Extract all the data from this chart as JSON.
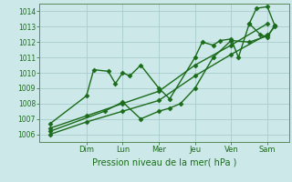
{
  "title": "",
  "xlabel": "Pression niveau de la mer( hPa )",
  "ylabel": "",
  "bg_color": "#cce8e8",
  "grid_color": "#aacccc",
  "line_color": "#1a6b1a",
  "ylim": [
    1005.5,
    1014.5
  ],
  "yticks": [
    1006,
    1007,
    1008,
    1009,
    1010,
    1011,
    1012,
    1013,
    1014
  ],
  "day_labels": [
    "Dim",
    "Lun",
    "Mer",
    "Jeu",
    "Ven",
    "Sam"
  ],
  "day_positions": [
    1,
    2,
    3,
    4,
    5,
    6
  ],
  "series": [
    {
      "x": [
        0,
        1.0,
        1.2,
        1.6,
        1.8,
        2.0,
        2.2,
        2.5,
        3.0,
        3.3,
        4.0,
        4.2,
        4.5,
        4.7,
        5.0,
        5.2,
        5.5,
        5.8,
        6.0,
        6.2
      ],
      "y": [
        1006.7,
        1008.5,
        1010.2,
        1010.1,
        1009.3,
        1010.0,
        1009.8,
        1010.5,
        1009.0,
        1008.3,
        1011.0,
        1012.0,
        1011.8,
        1012.1,
        1012.2,
        1011.0,
        1013.2,
        1012.5,
        1012.3,
        1013.1
      ]
    },
    {
      "x": [
        0,
        1.5,
        2.0,
        2.5,
        3.0,
        3.3,
        3.6,
        4.0,
        4.5,
        5.0,
        5.5,
        6.0,
        6.2
      ],
      "y": [
        1006.2,
        1007.5,
        1008.1,
        1007.0,
        1007.5,
        1007.7,
        1008.0,
        1009.0,
        1011.0,
        1012.1,
        1012.0,
        1012.4,
        1013.0
      ]
    },
    {
      "x": [
        0.0,
        1.0,
        2.0,
        3.0,
        4.0,
        5.0,
        6.0
      ],
      "y": [
        1006.4,
        1007.2,
        1008.0,
        1008.8,
        1010.5,
        1011.8,
        1013.2
      ]
    },
    {
      "x": [
        0.0,
        1.0,
        2.0,
        3.0,
        4.0,
        5.0,
        6.0
      ],
      "y": [
        1006.0,
        1006.8,
        1007.5,
        1008.2,
        1009.8,
        1011.2,
        1012.5
      ]
    },
    {
      "x": [
        5.5,
        5.7,
        6.0,
        6.2
      ],
      "y": [
        1013.2,
        1014.2,
        1014.3,
        1013.1
      ]
    }
  ],
  "marker": "D",
  "marker_size": 2.5,
  "line_width": 1.0
}
